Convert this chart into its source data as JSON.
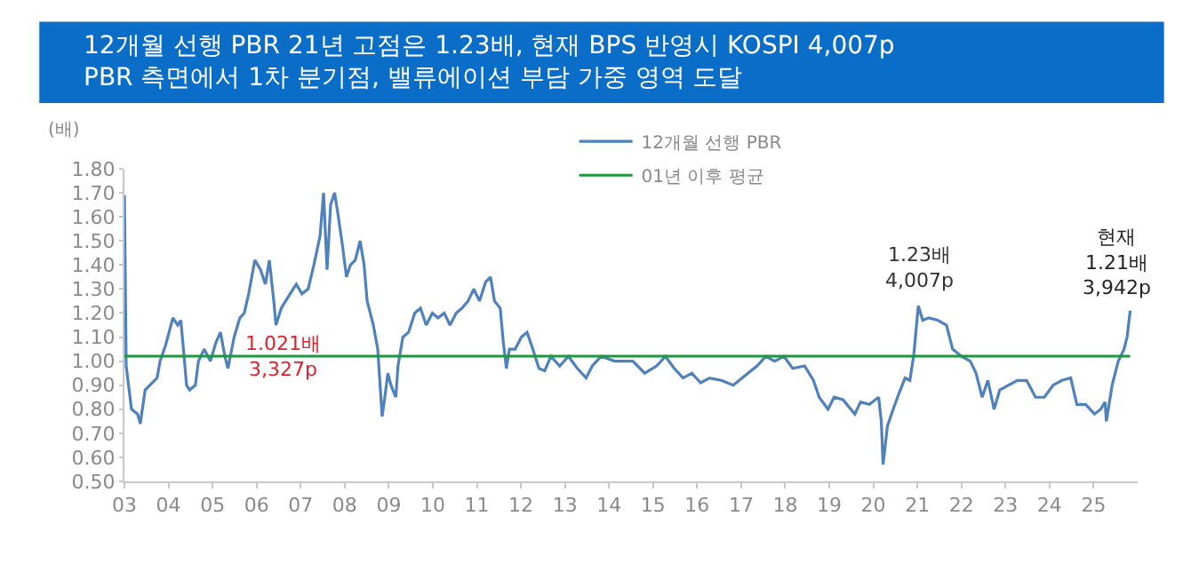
{
  "chart_data": {
    "type": "line",
    "title": "12개월 선행 PBR 21년 고점은 1.23배, 현재 BPS 반영시 KOSPI 4,007p\nPBR 측면에서 1차 분기점, 밸류에이션 부담 가중 영역 도달",
    "ylabel": "(배)",
    "series": [
      {
        "name": "12개월 선행 PBR",
        "color": "#4f81bd",
        "x": [
          2003.0,
          2003.04,
          2003.16,
          2003.3,
          2003.36,
          2003.47,
          2003.74,
          2003.81,
          2003.94,
          2004.1,
          2004.21,
          2004.28,
          2004.34,
          2004.41,
          2004.48,
          2004.61,
          2004.68,
          2004.81,
          2004.95,
          2005.08,
          2005.18,
          2005.28,
          2005.35,
          2005.49,
          2005.62,
          2005.72,
          2005.82,
          2005.96,
          2006.09,
          2006.2,
          2006.29,
          2006.39,
          2006.44,
          2006.56,
          2006.76,
          2006.9,
          2007.03,
          2007.17,
          2007.3,
          2007.44,
          2007.52,
          2007.6,
          2007.68,
          2007.77,
          2007.84,
          2007.95,
          2008.04,
          2008.13,
          2008.24,
          2008.35,
          2008.44,
          2008.51,
          2008.65,
          2008.75,
          2008.85,
          2008.91,
          2008.98,
          2009.05,
          2009.16,
          2009.21,
          2009.32,
          2009.45,
          2009.59,
          2009.72,
          2009.85,
          2009.99,
          2010.12,
          2010.26,
          2010.39,
          2010.53,
          2010.66,
          2010.8,
          2010.93,
          2011.06,
          2011.2,
          2011.31,
          2011.4,
          2011.53,
          2011.6,
          2011.67,
          2011.74,
          2011.87,
          2012.01,
          2012.14,
          2012.27,
          2012.41,
          2012.54,
          2012.68,
          2012.88,
          2013.08,
          2013.28,
          2013.48,
          2013.62,
          2013.82,
          2014.13,
          2014.54,
          2014.81,
          2015.08,
          2015.28,
          2015.48,
          2015.68,
          2015.88,
          2016.08,
          2016.28,
          2016.55,
          2016.82,
          2017.09,
          2017.36,
          2017.56,
          2017.76,
          2017.97,
          2018.17,
          2018.44,
          2018.64,
          2018.77,
          2018.97,
          2019.11,
          2019.31,
          2019.58,
          2019.71,
          2019.91,
          2020.12,
          2020.18,
          2020.22,
          2020.32,
          2020.45,
          2020.59,
          2020.72,
          2020.83,
          2020.92,
          2021.02,
          2021.12,
          2021.26,
          2021.46,
          2021.66,
          2021.8,
          2022.0,
          2022.2,
          2022.33,
          2022.47,
          2022.6,
          2022.74,
          2022.87,
          2023.07,
          2023.27,
          2023.48,
          2023.68,
          2023.88,
          2024.08,
          2024.28,
          2024.48,
          2024.62,
          2024.82,
          2025.02,
          2025.16,
          2025.26,
          2025.29,
          2025.42,
          2025.56,
          2025.69,
          2025.76,
          2025.83
        ],
        "values": [
          1.69,
          0.98,
          0.8,
          0.78,
          0.74,
          0.88,
          0.93,
          1.0,
          1.07,
          1.18,
          1.15,
          1.17,
          1.05,
          0.9,
          0.88,
          0.9,
          1.0,
          1.05,
          1.0,
          1.08,
          1.12,
          1.02,
          0.97,
          1.1,
          1.18,
          1.2,
          1.28,
          1.42,
          1.38,
          1.32,
          1.42,
          1.25,
          1.15,
          1.22,
          1.28,
          1.32,
          1.28,
          1.3,
          1.4,
          1.52,
          1.7,
          1.38,
          1.65,
          1.7,
          1.62,
          1.48,
          1.35,
          1.4,
          1.42,
          1.5,
          1.4,
          1.25,
          1.15,
          1.05,
          0.77,
          0.85,
          0.95,
          0.9,
          0.85,
          0.98,
          1.1,
          1.12,
          1.2,
          1.22,
          1.15,
          1.2,
          1.18,
          1.2,
          1.15,
          1.2,
          1.22,
          1.25,
          1.3,
          1.25,
          1.33,
          1.35,
          1.25,
          1.22,
          1.08,
          0.97,
          1.05,
          1.05,
          1.1,
          1.12,
          1.05,
          0.97,
          0.96,
          1.02,
          0.98,
          1.02,
          0.97,
          0.93,
          0.98,
          1.02,
          1.0,
          1.0,
          0.95,
          0.98,
          1.02,
          0.97,
          0.93,
          0.95,
          0.91,
          0.93,
          0.92,
          0.9,
          0.94,
          0.98,
          1.02,
          1.0,
          1.02,
          0.97,
          0.98,
          0.92,
          0.85,
          0.8,
          0.85,
          0.84,
          0.78,
          0.83,
          0.82,
          0.85,
          0.75,
          0.57,
          0.73,
          0.8,
          0.87,
          0.93,
          0.92,
          1.03,
          1.23,
          1.17,
          1.18,
          1.17,
          1.15,
          1.05,
          1.02,
          1.0,
          0.95,
          0.85,
          0.92,
          0.8,
          0.88,
          0.9,
          0.92,
          0.92,
          0.85,
          0.85,
          0.9,
          0.92,
          0.93,
          0.82,
          0.82,
          0.78,
          0.8,
          0.83,
          0.75,
          0.9,
          1.0,
          1.05,
          1.1,
          1.21
        ]
      },
      {
        "name": "01년 이후 평균",
        "color": "#1a9a3c",
        "x": [
          2003.0,
          2025.83
        ],
        "values": [
          1.021,
          1.021
        ]
      }
    ],
    "xlim": [
      2003,
      2026
    ],
    "xticks": [
      {
        "value": 2003,
        "label": "03"
      },
      {
        "value": 2004,
        "label": "04"
      },
      {
        "value": 2005,
        "label": "05"
      },
      {
        "value": 2006,
        "label": "06"
      },
      {
        "value": 2007,
        "label": "07"
      },
      {
        "value": 2008,
        "label": "08"
      },
      {
        "value": 2009,
        "label": "09"
      },
      {
        "value": 2010,
        "label": "10"
      },
      {
        "value": 2011,
        "label": "11"
      },
      {
        "value": 2012,
        "label": "12"
      },
      {
        "value": 2013,
        "label": "13"
      },
      {
        "value": 2014,
        "label": "14"
      },
      {
        "value": 2015,
        "label": "15"
      },
      {
        "value": 2016,
        "label": "16"
      },
      {
        "value": 2017,
        "label": "17"
      },
      {
        "value": 2018,
        "label": "18"
      },
      {
        "value": 2019,
        "label": "19"
      },
      {
        "value": 2020,
        "label": "20"
      },
      {
        "value": 2021,
        "label": "21"
      },
      {
        "value": 2022,
        "label": "22"
      },
      {
        "value": 2023,
        "label": "23"
      },
      {
        "value": 2024,
        "label": "24"
      },
      {
        "value": 2025,
        "label": "25"
      }
    ],
    "ylim": [
      0.5,
      1.8
    ],
    "yticks": [
      {
        "value": 0.5,
        "label": "0.50"
      },
      {
        "value": 0.6,
        "label": "0.60"
      },
      {
        "value": 0.7,
        "label": "0.70"
      },
      {
        "value": 0.8,
        "label": "0.80"
      },
      {
        "value": 0.9,
        "label": "0.90"
      },
      {
        "value": 1.0,
        "label": "1.00"
      },
      {
        "value": 1.1,
        "label": "1.10"
      },
      {
        "value": 1.2,
        "label": "1.20"
      },
      {
        "value": 1.3,
        "label": "1.30"
      },
      {
        "value": 1.4,
        "label": "1.40"
      },
      {
        "value": 1.5,
        "label": "1.50"
      },
      {
        "value": 1.6,
        "label": "1.60"
      },
      {
        "value": 1.7,
        "label": "1.70"
      },
      {
        "value": 1.8,
        "label": "1.80"
      }
    ],
    "annotations": [
      {
        "text": "1.021배\n3,327p",
        "x": 2006.6,
        "y": 1.021
      },
      {
        "text": "1.23배\n4,007p",
        "x": 2021.02,
        "y": 1.23
      },
      {
        "text": "현재\n1.21배\n3,942p",
        "x": 2025.83,
        "y": 1.21
      }
    ],
    "legend": "top",
    "line_style": "solid",
    "marker": "none"
  }
}
